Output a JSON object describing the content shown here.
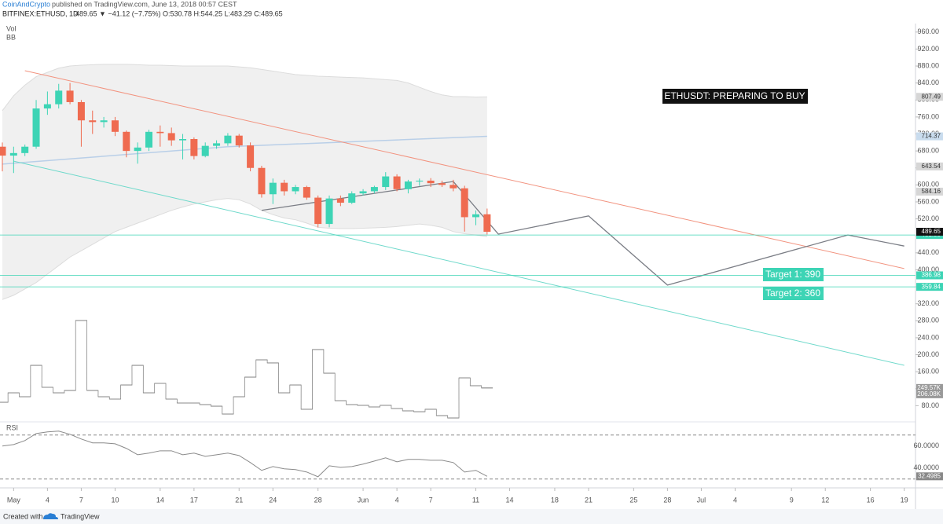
{
  "header": {
    "author": "CoinAndCrypto",
    "published": "published on TradingView.com, June 13, 2018 00:57 CEST",
    "symbol": "BITFINEX:ETHUSD, 1D",
    "quote": "489.65 ▼ −41.12 (−7.75%) O:530.78 H:544.25 L:483.29 C:489.65"
  },
  "footer": {
    "created": "Created with",
    "brand": "TradingView"
  },
  "annotations": {
    "headline": "ETHUSDT: PREPARING TO BUY",
    "target1": "Target 1: 390",
    "target2": "Target 2: 360"
  },
  "chart_data": {
    "type": "candlestick",
    "x": [
      "2018-04-30",
      "2018-05-01",
      "2018-05-02",
      "2018-05-03",
      "2018-05-04",
      "2018-05-05",
      "2018-05-06",
      "2018-05-07",
      "2018-05-08",
      "2018-05-09",
      "2018-05-10",
      "2018-05-11",
      "2018-05-12",
      "2018-05-13",
      "2018-05-14",
      "2018-05-15",
      "2018-05-16",
      "2018-05-17",
      "2018-05-18",
      "2018-05-19",
      "2018-05-20",
      "2018-05-21",
      "2018-05-22",
      "2018-05-23",
      "2018-05-24",
      "2018-05-25",
      "2018-05-26",
      "2018-05-27",
      "2018-05-28",
      "2018-05-29",
      "2018-05-30",
      "2018-05-31",
      "2018-06-01",
      "2018-06-02",
      "2018-06-03",
      "2018-06-04",
      "2018-06-05",
      "2018-06-06",
      "2018-06-07",
      "2018-06-08",
      "2018-06-09",
      "2018-06-10",
      "2018-06-11",
      "2018-06-12"
    ],
    "open": [
      690,
      669,
      675,
      690,
      780,
      790,
      822,
      795,
      752,
      748,
      752,
      725,
      680,
      688,
      725,
      722,
      705,
      708,
      668,
      692,
      698,
      716,
      693,
      640,
      578,
      605,
      585,
      595,
      570,
      508,
      568,
      558,
      580,
      585,
      595,
      620,
      590,
      608,
      610,
      604,
      600,
      592,
      524,
      530.78
    ],
    "high": [
      700,
      690,
      695,
      800,
      820,
      838,
      840,
      800,
      775,
      760,
      760,
      728,
      700,
      730,
      740,
      735,
      720,
      712,
      700,
      705,
      722,
      720,
      700,
      645,
      615,
      612,
      600,
      598,
      575,
      575,
      575,
      585,
      590,
      598,
      630,
      625,
      612,
      615,
      616,
      610,
      612,
      598,
      540,
      544.25
    ],
    "low": [
      632,
      628,
      668,
      685,
      765,
      780,
      790,
      690,
      720,
      735,
      715,
      665,
      650,
      680,
      690,
      692,
      660,
      660,
      665,
      685,
      692,
      688,
      632,
      570,
      555,
      575,
      578,
      565,
      500,
      500,
      550,
      555,
      575,
      580,
      588,
      585,
      580,
      598,
      595,
      595,
      585,
      490,
      505,
      483.29
    ],
    "close": [
      669,
      675,
      690,
      780,
      790,
      822,
      795,
      752,
      748,
      752,
      725,
      680,
      688,
      725,
      722,
      705,
      708,
      668,
      692,
      698,
      716,
      693,
      640,
      578,
      605,
      585,
      595,
      570,
      508,
      568,
      558,
      580,
      585,
      595,
      620,
      590,
      608,
      610,
      604,
      600,
      592,
      524,
      530.77,
      489.65
    ],
    "colors": {
      "up": "#3dd4b5",
      "down": "#ef6b50"
    },
    "xlim": [
      "2018-04-30",
      "2018-07-20"
    ],
    "xticks": [
      {
        "value": "2018-05-01",
        "label": "May"
      },
      {
        "value": "2018-05-04",
        "label": "4"
      },
      {
        "value": "2018-05-07",
        "label": "7"
      },
      {
        "value": "2018-05-10",
        "label": "10"
      },
      {
        "value": "2018-05-14",
        "label": "14"
      },
      {
        "value": "2018-05-17",
        "label": "17"
      },
      {
        "value": "2018-05-21",
        "label": "21"
      },
      {
        "value": "2018-05-24",
        "label": "24"
      },
      {
        "value": "2018-05-28",
        "label": "28"
      },
      {
        "value": "2018-06-01",
        "label": "Jun"
      },
      {
        "value": "2018-06-04",
        "label": "4"
      },
      {
        "value": "2018-06-07",
        "label": "7"
      },
      {
        "value": "2018-06-11",
        "label": "11"
      },
      {
        "value": "2018-06-14",
        "label": "14"
      },
      {
        "value": "2018-06-18",
        "label": "18"
      },
      {
        "value": "2018-06-21",
        "label": "21"
      },
      {
        "value": "2018-06-25",
        "label": "25"
      },
      {
        "value": "2018-06-28",
        "label": "28"
      },
      {
        "value": "2018-07-01",
        "label": "Jul"
      },
      {
        "value": "2018-07-04",
        "label": "4"
      },
      {
        "value": "2018-07-09",
        "label": "9"
      },
      {
        "value": "2018-07-12",
        "label": "12"
      },
      {
        "value": "2018-07-16",
        "label": "16"
      },
      {
        "value": "2018-07-19",
        "label": "19"
      }
    ],
    "ylim": [
      40,
      980
    ],
    "yticks": [
      {
        "value": 960,
        "label": "960.00"
      },
      {
        "value": 920,
        "label": "920.00"
      },
      {
        "value": 880,
        "label": "880.00"
      },
      {
        "value": 840,
        "label": "840.00"
      },
      {
        "value": 800,
        "label": "800.00"
      },
      {
        "value": 760,
        "label": "760.00"
      },
      {
        "value": 720,
        "label": "720.00"
      },
      {
        "value": 680,
        "label": "680.00"
      },
      {
        "value": 640,
        "label": "640.00"
      },
      {
        "value": 600,
        "label": "600.00"
      },
      {
        "value": 560,
        "label": "560.00"
      },
      {
        "value": 520,
        "label": "520.00"
      },
      {
        "value": 480,
        "label": "480.00"
      },
      {
        "value": 440,
        "label": "440.00"
      },
      {
        "value": 400,
        "label": "400.00"
      },
      {
        "value": 360,
        "label": "360.00"
      },
      {
        "value": 320,
        "label": "320.00"
      },
      {
        "value": 280,
        "label": "280.00"
      },
      {
        "value": 240,
        "label": "240.00"
      },
      {
        "value": 200,
        "label": "200.00"
      },
      {
        "value": 160,
        "label": "160.00"
      },
      {
        "value": 120,
        "label": "120.00"
      },
      {
        "value": 80,
        "label": "80.00"
      }
    ],
    "volume": {
      "label": "Vol",
      "ylim": [
        0,
        2000
      ],
      "values": [
        151,
        216,
        189,
        405,
        254,
        216,
        232,
        714,
        232,
        189,
        173,
        270,
        405,
        216,
        281,
        173,
        146,
        146,
        135,
        124,
        70,
        189,
        324,
        443,
        422,
        216,
        270,
        103,
        514,
        351,
        162,
        135,
        130,
        119,
        130,
        108,
        92,
        86,
        103,
        59,
        43,
        319,
        265,
        249.57
      ],
      "badges": [
        {
          "value": 249.57,
          "label": "249.57K"
        },
        {
          "value": 206.08,
          "label": "206.08K"
        }
      ]
    },
    "bb": {
      "label": "BB",
      "upper": [
        775,
        810,
        835,
        855,
        865,
        875,
        880,
        882,
        883,
        884,
        884,
        884,
        883,
        882,
        882,
        881,
        880,
        880,
        880,
        880,
        880,
        878,
        876,
        872,
        868,
        864,
        860,
        858,
        856,
        855,
        854,
        853,
        852,
        850,
        848,
        846,
        840,
        830,
        820,
        812,
        808,
        808,
        807,
        807.49
      ],
      "lower": [
        330,
        340,
        355,
        370,
        390,
        410,
        430,
        445,
        460,
        475,
        490,
        500,
        510,
        520,
        530,
        540,
        548,
        555,
        560,
        565,
        568,
        565,
        555,
        540,
        530,
        522,
        518,
        510,
        500,
        498,
        497,
        497,
        498,
        499,
        500,
        502,
        505,
        508,
        505,
        500,
        490,
        485,
        482,
        478
      ]
    },
    "ma": {
      "color": "#b9cfe8",
      "points": [
        [
          "2018-04-30",
          649
        ],
        [
          "2018-05-20",
          690
        ],
        [
          "2018-06-12",
          714.37
        ]
      ]
    },
    "trendlines": [
      {
        "color": "#f2937f",
        "points": [
          [
            "2018-05-02",
            869
          ],
          [
            "2018-07-19",
            403
          ]
        ]
      },
      {
        "color": "#6fd9cb",
        "points": [
          [
            "2018-05-01",
            656
          ],
          [
            "2018-07-19",
            175
          ]
        ]
      }
    ],
    "projection": {
      "color": "#7a7d85",
      "points": [
        [
          "2018-05-23",
          540
        ],
        [
          "2018-06-09",
          608
        ],
        [
          "2018-06-13",
          484
        ],
        [
          "2018-06-21",
          527
        ],
        [
          "2018-06-28",
          364
        ],
        [
          "2018-07-14",
          482
        ],
        [
          "2018-07-19",
          456
        ]
      ]
    },
    "hlines": [
      {
        "value": 481.99,
        "color": "#3dd4b5"
      },
      {
        "value": 386.98,
        "color": "#3dd4b5"
      },
      {
        "value": 359.84,
        "color": "#3dd4b5"
      }
    ],
    "price_badges": [
      {
        "value": 807.49,
        "color": "#d6d6d6"
      },
      {
        "value": 714.37,
        "color": "#c9dcee"
      },
      {
        "value": 643.54,
        "color": "#d6d6d6"
      },
      {
        "value": 584.16,
        "color": "#d6d6d6"
      }
    ],
    "rsi": {
      "label": "RSI",
      "ylim": [
        22,
        82
      ],
      "yticks": [
        {
          "value": 60,
          "label": "60.0000"
        },
        {
          "value": 40,
          "label": "40.0000"
        }
      ],
      "levels": [
        70,
        30
      ],
      "values": [
        60,
        61.4,
        65,
        71.4,
        72.9,
        73.6,
        70.7,
        66.4,
        62.9,
        62.9,
        62.1,
        57.9,
        52.1,
        53.6,
        55.7,
        55.7,
        52.1,
        53.6,
        50.7,
        52.1,
        53.6,
        51.4,
        45,
        37.9,
        41.4,
        39.3,
        38.6,
        36.4,
        32.1,
        42.1,
        40.7,
        41.4,
        43.6,
        46.4,
        49.3,
        45.7,
        47.9,
        47.9,
        47.1,
        47.1,
        45,
        36.4,
        37.9,
        32.4985
      ]
    }
  }
}
